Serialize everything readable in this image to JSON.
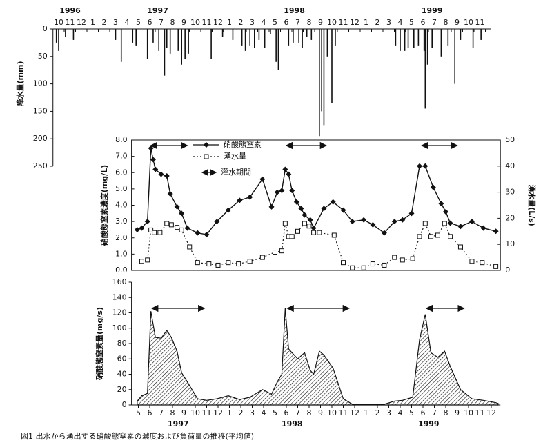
{
  "caption": "図1 出水から湧出する硝酸態窒素の濃度および負荷量の推移(平均値)",
  "chart_data": [
    {
      "type": "bar",
      "ylabel": "降水量(mm)",
      "inverted": true,
      "color": "#111111",
      "xlim": [
        9.5,
        48
      ],
      "ylim": [
        0,
        250
      ],
      "yticks": [
        0,
        50,
        100,
        150,
        200,
        250
      ],
      "xticks": [
        {
          "value": 10,
          "label": "10"
        },
        {
          "value": 11,
          "label": "11"
        },
        {
          "value": 12,
          "label": "12"
        },
        {
          "value": 13,
          "label": "1"
        },
        {
          "value": 14,
          "label": "2"
        },
        {
          "value": 15,
          "label": "3"
        },
        {
          "value": 16,
          "label": "4"
        },
        {
          "value": 17,
          "label": "5"
        },
        {
          "value": 18,
          "label": "6"
        },
        {
          "value": 19,
          "label": "7"
        },
        {
          "value": 20,
          "label": "8"
        },
        {
          "value": 21,
          "label": "9"
        },
        {
          "value": 22,
          "label": "10"
        },
        {
          "value": 23,
          "label": "11"
        },
        {
          "value": 24,
          "label": "12"
        },
        {
          "value": 25,
          "label": "1"
        },
        {
          "value": 26,
          "label": "2"
        },
        {
          "value": 27,
          "label": "3"
        },
        {
          "value": 28,
          "label": "4"
        },
        {
          "value": 29,
          "label": "5"
        },
        {
          "value": 30,
          "label": "6"
        },
        {
          "value": 31,
          "label": "7"
        },
        {
          "value": 32,
          "label": "8"
        },
        {
          "value": 33,
          "label": "9"
        },
        {
          "value": 34,
          "label": "10"
        },
        {
          "value": 35,
          "label": "11"
        },
        {
          "value": 36,
          "label": "12"
        },
        {
          "value": 37,
          "label": "1"
        },
        {
          "value": 38,
          "label": "2"
        },
        {
          "value": 39,
          "label": "3"
        },
        {
          "value": 40,
          "label": "4"
        },
        {
          "value": 41,
          "label": "5"
        },
        {
          "value": 42,
          "label": "6"
        },
        {
          "value": 43,
          "label": "7"
        },
        {
          "value": 44,
          "label": "8"
        },
        {
          "value": 45,
          "label": "9"
        },
        {
          "value": 46,
          "label": "10"
        },
        {
          "value": 47,
          "label": "11"
        }
      ],
      "year_labels": [
        {
          "value": 11,
          "label": "1996"
        },
        {
          "value": 18.7,
          "label": "1997"
        },
        {
          "value": 30.7,
          "label": "1998"
        },
        {
          "value": 42.8,
          "label": "1999"
        }
      ],
      "x": [
        9.8,
        10.0,
        10.6,
        11.3,
        15.0,
        15.5,
        16.5,
        16.8,
        17.8,
        18.3,
        18.8,
        19.3,
        19.5,
        19.8,
        20.5,
        20.8,
        21.1,
        21.4,
        23.4,
        24.4,
        25.3,
        26.1,
        26.4,
        26.8,
        27.2,
        27.6,
        28.1,
        28.6,
        29.1,
        29.3,
        30.2,
        30.6,
        31.1,
        31.4,
        31.8,
        32.2,
        32.9,
        33.1,
        33.3,
        33.6,
        34.0,
        34.3,
        39.6,
        40.0,
        40.4,
        40.7,
        41.2,
        41.6,
        42.1,
        42.2,
        42.4,
        42.8,
        43.6,
        44.2,
        44.8,
        45.3,
        46.4,
        47.1
      ],
      "values": [
        25,
        40,
        15,
        20,
        20,
        60,
        25,
        30,
        55,
        25,
        40,
        85,
        35,
        45,
        40,
        65,
        55,
        45,
        55,
        15,
        20,
        30,
        40,
        30,
        35,
        20,
        35,
        10,
        60,
        75,
        30,
        25,
        25,
        35,
        15,
        20,
        195,
        150,
        175,
        50,
        135,
        30,
        30,
        40,
        40,
        35,
        35,
        30,
        40,
        145,
        65,
        35,
        50,
        30,
        100,
        20,
        35,
        20
      ]
    },
    {
      "type": "line",
      "ylabel": "硝酸態窒素濃度(mg/L)",
      "y2label": "湧水量(L/s)",
      "xlim": [
        16.4,
        48.8
      ],
      "ylim": [
        0,
        8
      ],
      "y2lim": [
        0,
        50
      ],
      "yticks": [
        {
          "value": 0,
          "label": "0.0"
        },
        {
          "value": 1,
          "label": "1.0"
        },
        {
          "value": 2,
          "label": "2.0"
        },
        {
          "value": 3,
          "label": "3.0"
        },
        {
          "value": 4,
          "label": "4.0"
        },
        {
          "value": 5,
          "label": "5.0"
        },
        {
          "value": 6,
          "label": "6.0"
        },
        {
          "value": 7,
          "label": "7.0"
        },
        {
          "value": 8,
          "label": "8.0"
        }
      ],
      "y2ticks": [
        0,
        10,
        20,
        30,
        40,
        50
      ],
      "irrigation_label": "灌水期間",
      "irrigation_periods": [
        {
          "start": 18.1,
          "end": 21.3
        },
        {
          "start": 30.0,
          "end": 33.5
        },
        {
          "start": 41.9,
          "end": 45.0
        }
      ],
      "series": [
        {
          "name": "硝酸態窒素",
          "color": "#111111",
          "marker": "diamond",
          "style": "solid",
          "x": [
            16.9,
            17.3,
            17.8,
            18.1,
            18.3,
            18.5,
            19.0,
            19.5,
            19.8,
            20.4,
            20.8,
            21.3,
            22.2,
            23.0,
            23.9,
            24.9,
            25.9,
            26.8,
            27.9,
            28.7,
            29.2,
            29.6,
            29.9,
            30.2,
            30.5,
            30.9,
            31.3,
            31.6,
            32.1,
            32.4,
            33.3,
            34.1,
            35.0,
            35.8,
            36.8,
            37.6,
            38.6,
            39.5,
            40.2,
            41.0,
            41.7,
            42.2,
            42.9,
            43.6,
            44.0,
            44.4,
            45.3,
            46.3,
            47.3,
            48.4
          ],
          "values": [
            2.5,
            2.6,
            3.0,
            7.5,
            6.8,
            6.2,
            5.9,
            5.8,
            4.7,
            3.9,
            3.5,
            2.6,
            2.3,
            2.2,
            3.0,
            3.7,
            4.3,
            4.5,
            5.6,
            3.9,
            4.8,
            4.9,
            6.2,
            5.9,
            4.9,
            4.2,
            3.8,
            3.4,
            3.1,
            2.6,
            3.8,
            4.2,
            3.7,
            3.0,
            3.1,
            2.8,
            2.3,
            3.0,
            3.1,
            3.5,
            6.4,
            6.4,
            5.1,
            4.1,
            3.6,
            2.9,
            2.7,
            3.0,
            2.6,
            2.4
          ]
        },
        {
          "name": "湧水量",
          "color": "#111111",
          "marker": "square",
          "style": "dotted",
          "axis": "y2",
          "x": [
            17.3,
            17.8,
            18.1,
            18.4,
            18.9,
            19.5,
            19.9,
            20.4,
            20.8,
            21.5,
            22.2,
            23.2,
            24.0,
            24.9,
            25.8,
            26.8,
            27.9,
            29.0,
            29.6,
            29.9,
            30.2,
            30.5,
            31.0,
            31.6,
            32.0,
            32.4,
            32.9,
            34.2,
            35.0,
            35.8,
            36.8,
            37.6,
            38.6,
            39.5,
            40.2,
            41.1,
            41.7,
            42.2,
            42.7,
            43.3,
            43.9,
            44.4,
            45.3,
            46.3,
            47.2,
            48.4
          ],
          "values": [
            3.5,
            4.0,
            15.5,
            14.5,
            14.5,
            18,
            17.5,
            16.5,
            15.5,
            9,
            3,
            2.5,
            2,
            3,
            2.5,
            3.5,
            5,
            7,
            7.5,
            18,
            13,
            13,
            15,
            18,
            17,
            14.5,
            14.5,
            13.5,
            3,
            1,
            1,
            2.5,
            2,
            5,
            4,
            4.5,
            13,
            18,
            13,
            13.5,
            18,
            13,
            9,
            3.5,
            3,
            1.5
          ]
        }
      ]
    },
    {
      "type": "area",
      "ylabel": "硝酸態窒素量(mg/s)",
      "color": "#111111",
      "xlim": [
        16.4,
        48.8
      ],
      "ylim": [
        0,
        160
      ],
      "yticks": [
        0,
        20,
        40,
        60,
        80,
        100,
        120,
        140,
        160
      ],
      "xticks": [
        {
          "value": 17,
          "label": "5"
        },
        {
          "value": 18,
          "label": "6"
        },
        {
          "value": 19,
          "label": "7"
        },
        {
          "value": 20,
          "label": "8"
        },
        {
          "value": 21,
          "label": "9"
        },
        {
          "value": 22,
          "label": "10"
        },
        {
          "value": 23,
          "label": "11"
        },
        {
          "value": 24,
          "label": "12"
        },
        {
          "value": 25,
          "label": "1"
        },
        {
          "value": 26,
          "label": "2"
        },
        {
          "value": 27,
          "label": "3"
        },
        {
          "value": 28,
          "label": "4"
        },
        {
          "value": 29,
          "label": "5"
        },
        {
          "value": 30,
          "label": "6"
        },
        {
          "value": 31,
          "label": "7"
        },
        {
          "value": 32,
          "label": "8"
        },
        {
          "value": 33,
          "label": "9"
        },
        {
          "value": 34,
          "label": "10"
        },
        {
          "value": 35,
          "label": "11"
        },
        {
          "value": 36,
          "label": "12"
        },
        {
          "value": 37,
          "label": "1"
        },
        {
          "value": 38,
          "label": "2"
        },
        {
          "value": 39,
          "label": "3"
        },
        {
          "value": 40,
          "label": "4"
        },
        {
          "value": 41,
          "label": "5"
        },
        {
          "value": 42,
          "label": "6"
        },
        {
          "value": 43,
          "label": "7"
        },
        {
          "value": 44,
          "label": "8"
        },
        {
          "value": 45,
          "label": "9"
        },
        {
          "value": 46,
          "label": "10"
        },
        {
          "value": 47,
          "label": "11"
        },
        {
          "value": 48,
          "label": "12"
        }
      ],
      "year_labels": [
        {
          "value": 20.5,
          "label": "1997"
        },
        {
          "value": 30.5,
          "label": "1998"
        },
        {
          "value": 42.5,
          "label": "1999"
        }
      ],
      "irrigation_periods": [
        {
          "start": 18.2,
          "end": 22.8
        },
        {
          "start": 30.1,
          "end": 35.5
        },
        {
          "start": 42.3,
          "end": 45.6
        }
      ],
      "x": [
        16.9,
        17.3,
        17.8,
        18.1,
        18.5,
        19.0,
        19.5,
        19.9,
        20.4,
        20.8,
        21.3,
        22.2,
        23.0,
        23.9,
        24.9,
        25.9,
        26.8,
        27.9,
        28.7,
        29.2,
        29.6,
        29.9,
        30.2,
        30.5,
        31.0,
        31.6,
        32.1,
        32.4,
        32.9,
        33.3,
        34.1,
        35.0,
        35.8,
        36.8,
        37.6,
        38.6,
        39.5,
        40.2,
        41.1,
        41.7,
        42.2,
        42.7,
        43.3,
        43.9,
        44.4,
        45.3,
        46.3,
        47.3,
        48.4,
        48.6
      ],
      "values": [
        5,
        12,
        15,
        122,
        88,
        87,
        97,
        88,
        70,
        42,
        30,
        8,
        6,
        8,
        12,
        7,
        10,
        20,
        14,
        30,
        40,
        126,
        73,
        68,
        60,
        68,
        45,
        40,
        70,
        65,
        48,
        8,
        1,
        1,
        1,
        1,
        5,
        6,
        10,
        85,
        118,
        68,
        62,
        70,
        50,
        20,
        8,
        6,
        3,
        2
      ]
    }
  ]
}
